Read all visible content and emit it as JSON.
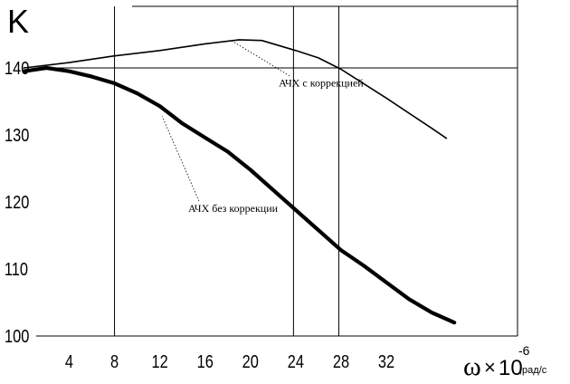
{
  "chart_data": {
    "type": "line",
    "ylabel": "K",
    "xlabel": {
      "symbol": "ω",
      "times": "×",
      "base": "10",
      "exponent": "-6",
      "unit": ",рад/с"
    },
    "x_ticks": [
      "4",
      "8",
      "12",
      "16",
      "20",
      "24",
      "28",
      "32"
    ],
    "y_ticks": [
      "100",
      "110",
      "120",
      "130",
      "140"
    ],
    "xlim": [
      0,
      38
    ],
    "ylim": [
      100,
      144
    ],
    "grid": "partial",
    "vertical_lines_x": [
      8,
      23.8,
      27.8
    ],
    "horizontal_lines_y": [
      140
    ],
    "series": [
      {
        "name": "АЧХ с коррекцией",
        "stroke_width": "thin",
        "points": [
          [
            0,
            140
          ],
          [
            4,
            140.8
          ],
          [
            8,
            141.8
          ],
          [
            12,
            142.6
          ],
          [
            16,
            143.6
          ],
          [
            19,
            144.2
          ],
          [
            21,
            144.1
          ],
          [
            24,
            142.6
          ],
          [
            26,
            141.5
          ],
          [
            28,
            139.8
          ],
          [
            32,
            135.5
          ],
          [
            36,
            131.0
          ],
          [
            37.3,
            129.5
          ]
        ]
      },
      {
        "name": "АЧХ без коррекции",
        "stroke_width": "thick",
        "points": [
          [
            0,
            139.5
          ],
          [
            2,
            140.0
          ],
          [
            4,
            139.5
          ],
          [
            6,
            138.7
          ],
          [
            8,
            137.7
          ],
          [
            10,
            136.2
          ],
          [
            12,
            134.3
          ],
          [
            14,
            131.7
          ],
          [
            16,
            129.6
          ],
          [
            18,
            127.5
          ],
          [
            20,
            124.8
          ],
          [
            22,
            121.8
          ],
          [
            24,
            118.8
          ],
          [
            26,
            115.8
          ],
          [
            28,
            112.8
          ],
          [
            30,
            110.5
          ],
          [
            32,
            108.0
          ],
          [
            34,
            105.5
          ],
          [
            36,
            103.5
          ],
          [
            38,
            102.0
          ]
        ]
      }
    ],
    "annotations": [
      {
        "text": "АЧХ с коррекцией",
        "x": 22.5,
        "y": 137.2,
        "arrow_to": [
          18.4,
          144.0
        ]
      },
      {
        "text": "АЧХ без коррекции",
        "x": 14.5,
        "y": 118.5,
        "arrow_to": [
          12.2,
          132.8
        ]
      }
    ]
  }
}
